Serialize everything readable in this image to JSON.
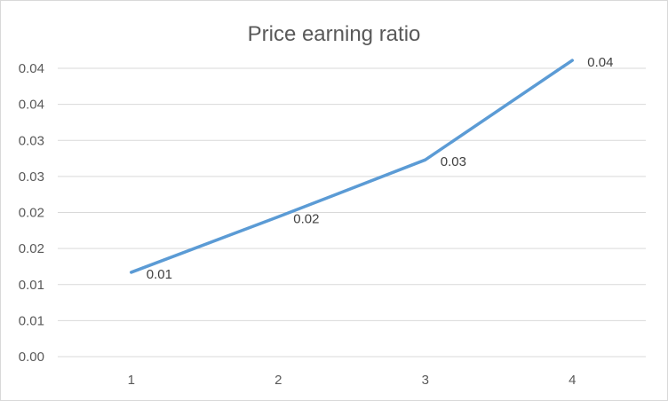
{
  "chart_data": {
    "type": "line",
    "title": "Price earning ratio",
    "xlabel": "",
    "ylabel": "",
    "categories": [
      "1",
      "2",
      "3",
      "4"
    ],
    "series": [
      {
        "values": [
          0.0117,
          0.0194,
          0.0273,
          0.0411
        ],
        "data_labels": [
          "0.01",
          "0.02",
          "0.03",
          "0.04"
        ],
        "color": "#5b9bd5"
      }
    ],
    "y_axis": {
      "ticks": [
        0,
        0.005,
        0.01,
        0.015,
        0.02,
        0.025,
        0.03,
        0.035,
        0.04
      ],
      "tick_labels": [
        "0.00",
        "0.01",
        "0.01",
        "0.02",
        "0.02",
        "0.03",
        "0.03",
        "0.04",
        "0.04"
      ],
      "ylim": [
        0,
        0.04
      ]
    },
    "grid": "horizontal",
    "legend": "none"
  }
}
